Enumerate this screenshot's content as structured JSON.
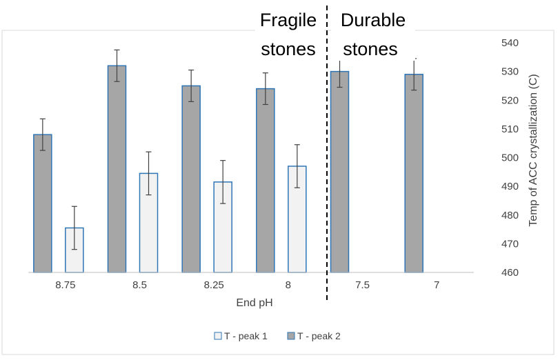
{
  "chart_data": {
    "type": "bar",
    "categories": [
      "8.75",
      "8.5",
      "8.25",
      "8",
      "7.5",
      "7"
    ],
    "series": [
      {
        "name": "T - peak 1",
        "values": [
          475.5,
          494.5,
          491.5,
          497,
          null,
          null
        ],
        "errors": [
          7.5,
          7.5,
          7.5,
          7.5,
          null,
          null
        ],
        "color": "#f2f2f2",
        "border": "#2e75b6"
      },
      {
        "name": "T - peak 2",
        "values": [
          508,
          532,
          525,
          524,
          530,
          529
        ],
        "errors": [
          5.5,
          5.5,
          5.5,
          5.5,
          5.5,
          5.5
        ],
        "color": "#a6a6a6",
        "border": "#2e75b6"
      }
    ],
    "xlabel": "End pH",
    "ylabel": "Temp  of ACC crystallization (C)",
    "ylim": [
      460,
      540
    ],
    "yticks": [
      460,
      470,
      480,
      490,
      500,
      510,
      520,
      530,
      540
    ],
    "y_axis_side": "right",
    "grid": false,
    "legend": "bottom",
    "annotations": [
      {
        "text": "Fragile stones",
        "lines": [
          "Fragile",
          "stones"
        ]
      },
      {
        "text": "Durable stones",
        "lines": [
          "Durable",
          "stones"
        ]
      }
    ],
    "divider": {
      "style": "dashed",
      "between": [
        "8",
        "7.5"
      ]
    }
  }
}
